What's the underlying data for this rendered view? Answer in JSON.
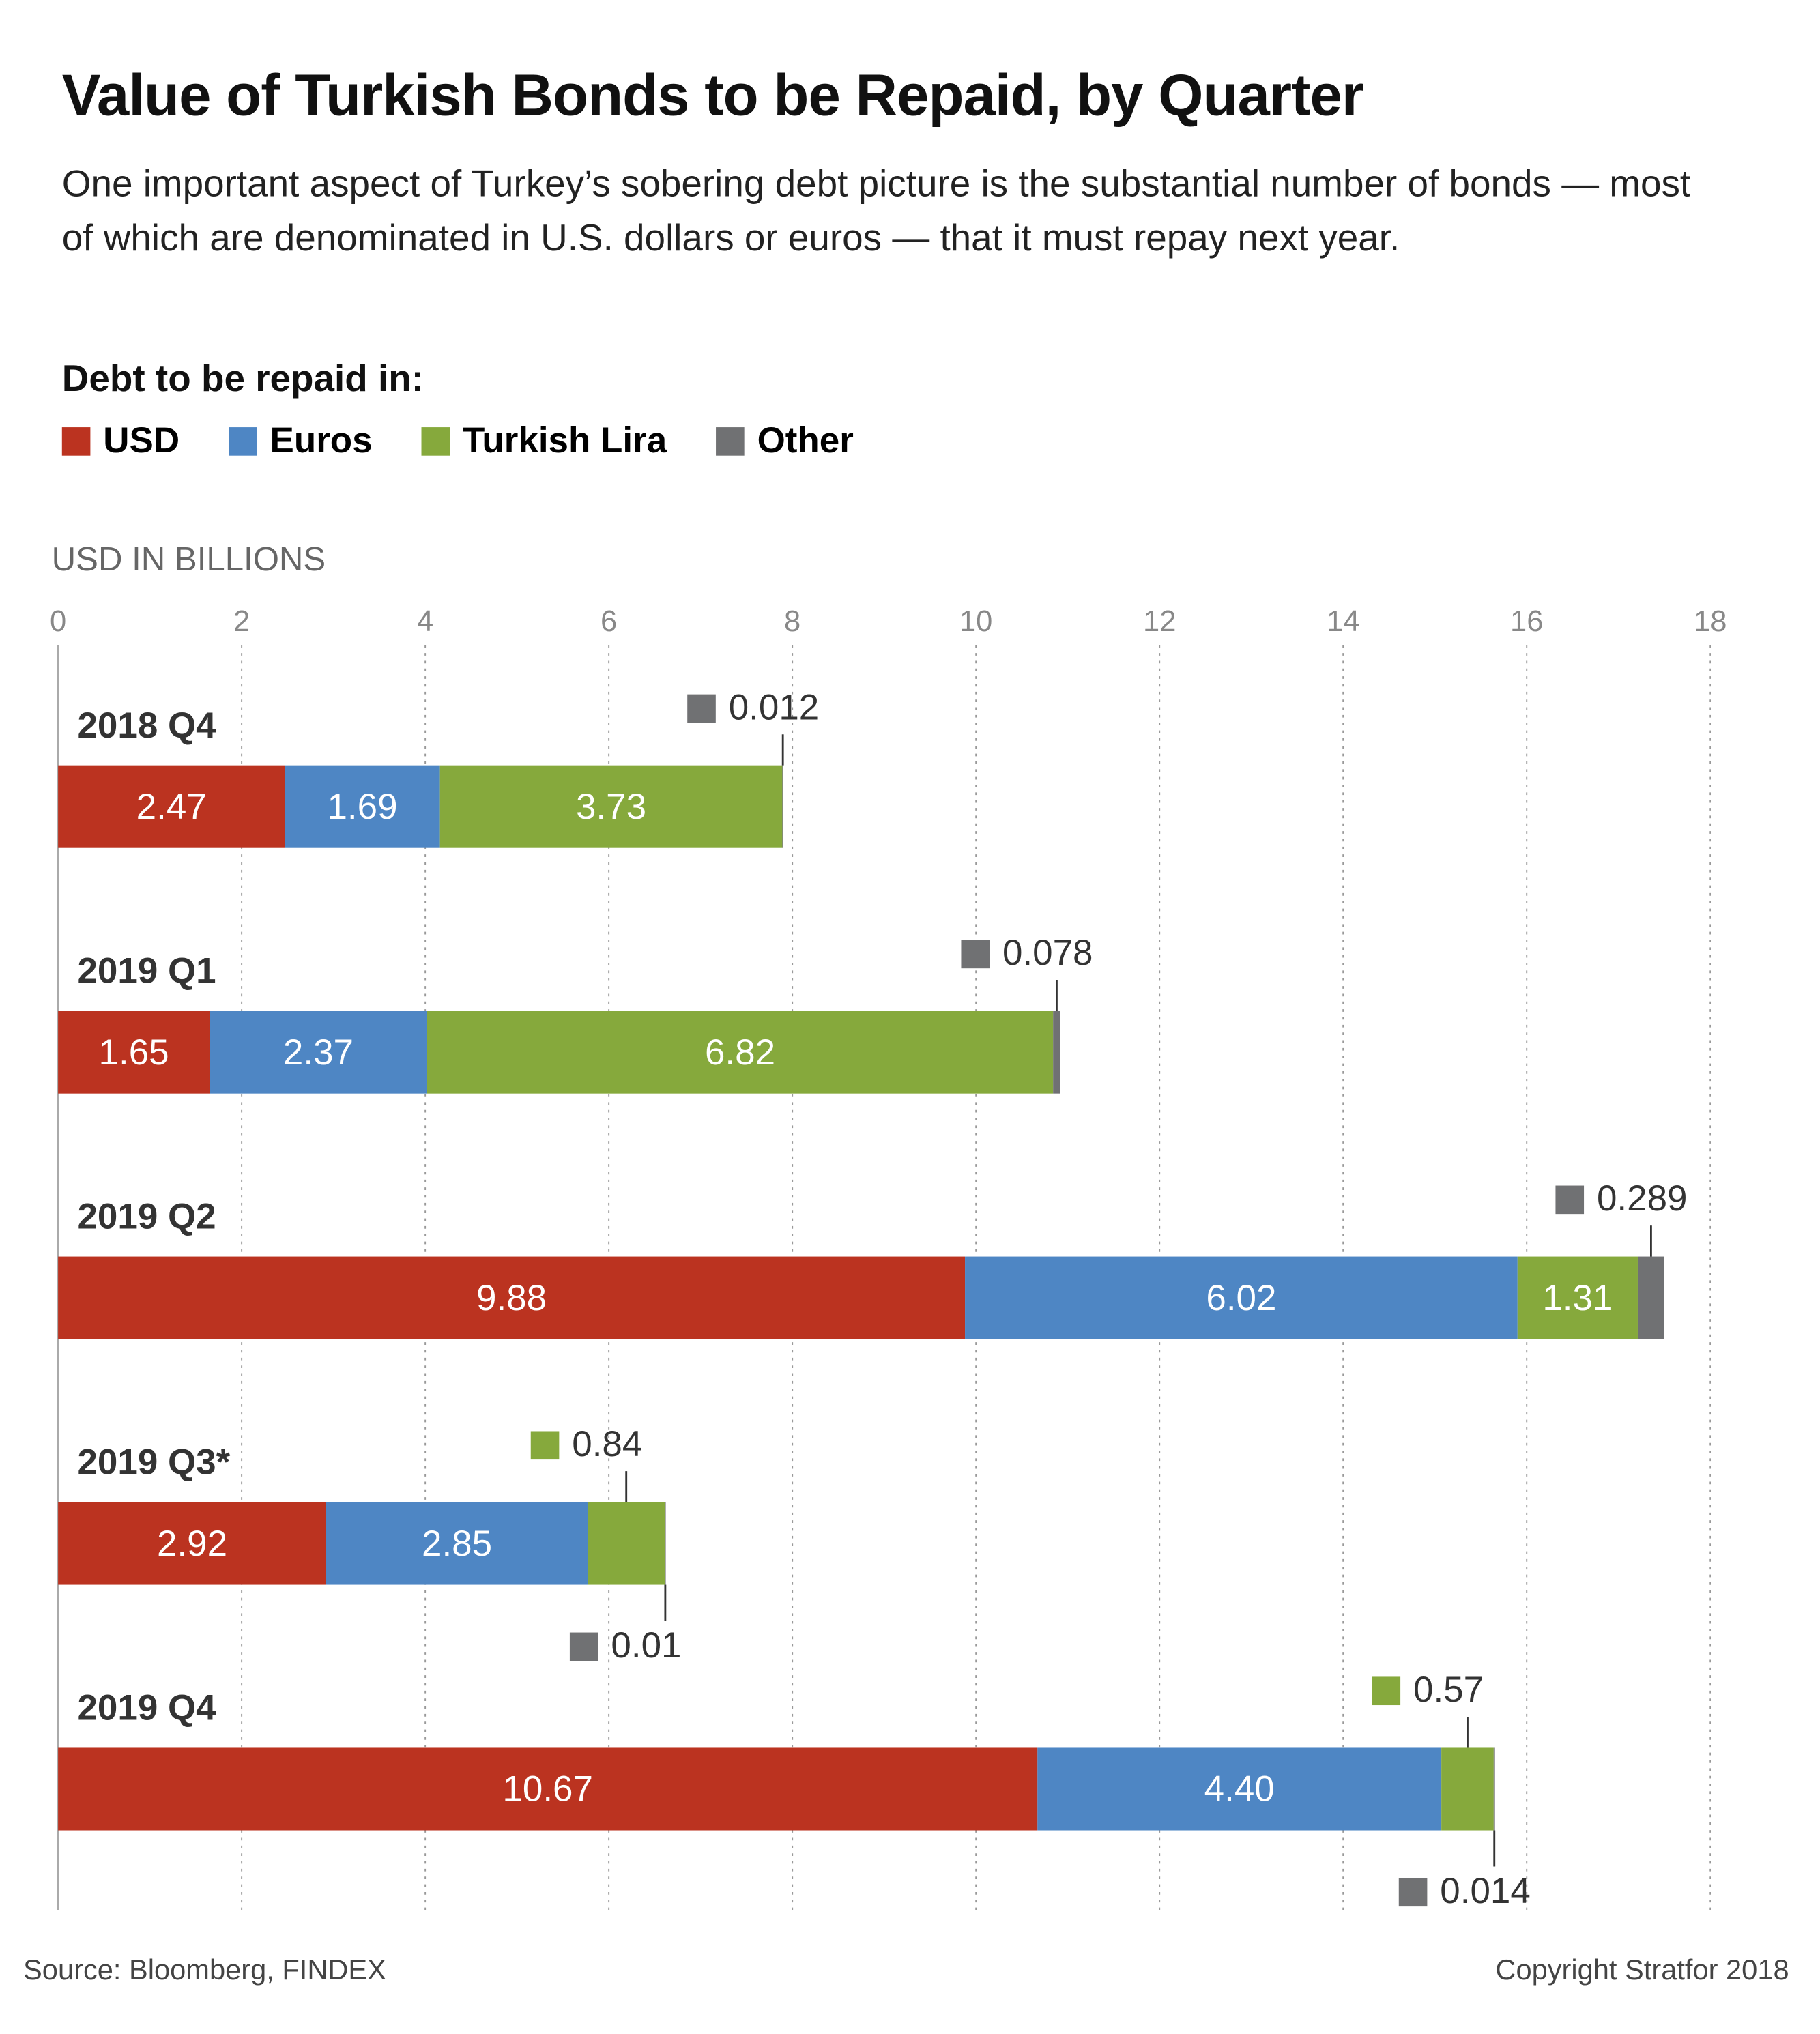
{
  "chart_data": {
    "type": "stacked-bar-horizontal",
    "title": "Value of Turkish Bonds to be Repaid, by Quarter",
    "subtitle": "One important aspect of Turkey’s sobering debt picture is the substantial number of bonds — most of which are denominated in U.S. dollars or euros — that it must repay next year.",
    "legend_title": "Debt to be repaid in:",
    "x_label": "USD IN BILLIONS",
    "categories": [
      "2018 Q4",
      "2019 Q1",
      "2019 Q2",
      "2019 Q3*",
      "2019 Q4"
    ],
    "series": [
      {
        "name": "USD",
        "color": "#bb3320",
        "values": [
          2.47,
          1.65,
          9.88,
          2.92,
          10.67
        ]
      },
      {
        "name": "Euros",
        "color": "#4e86c4",
        "values": [
          1.69,
          2.37,
          6.02,
          2.85,
          4.4
        ],
        "value_labels": [
          "1.69",
          "2.37",
          "6.02",
          "2.85",
          "4.40"
        ]
      },
      {
        "name": "Turkish Lira",
        "color": "#86a93c",
        "values": [
          3.73,
          6.82,
          1.31,
          0.84,
          0.57
        ]
      },
      {
        "name": "Other",
        "color": "#707173",
        "values": [
          0.012,
          0.078,
          0.289,
          0.01,
          0.014
        ]
      }
    ],
    "xlim": [
      0,
      18
    ],
    "xticks": [
      0,
      2,
      4,
      6,
      8,
      10,
      12,
      14,
      16,
      18
    ],
    "grid": true,
    "source": "Source: Bloomberg, FINDEX",
    "credit": "Copyright Stratfor 2018"
  }
}
